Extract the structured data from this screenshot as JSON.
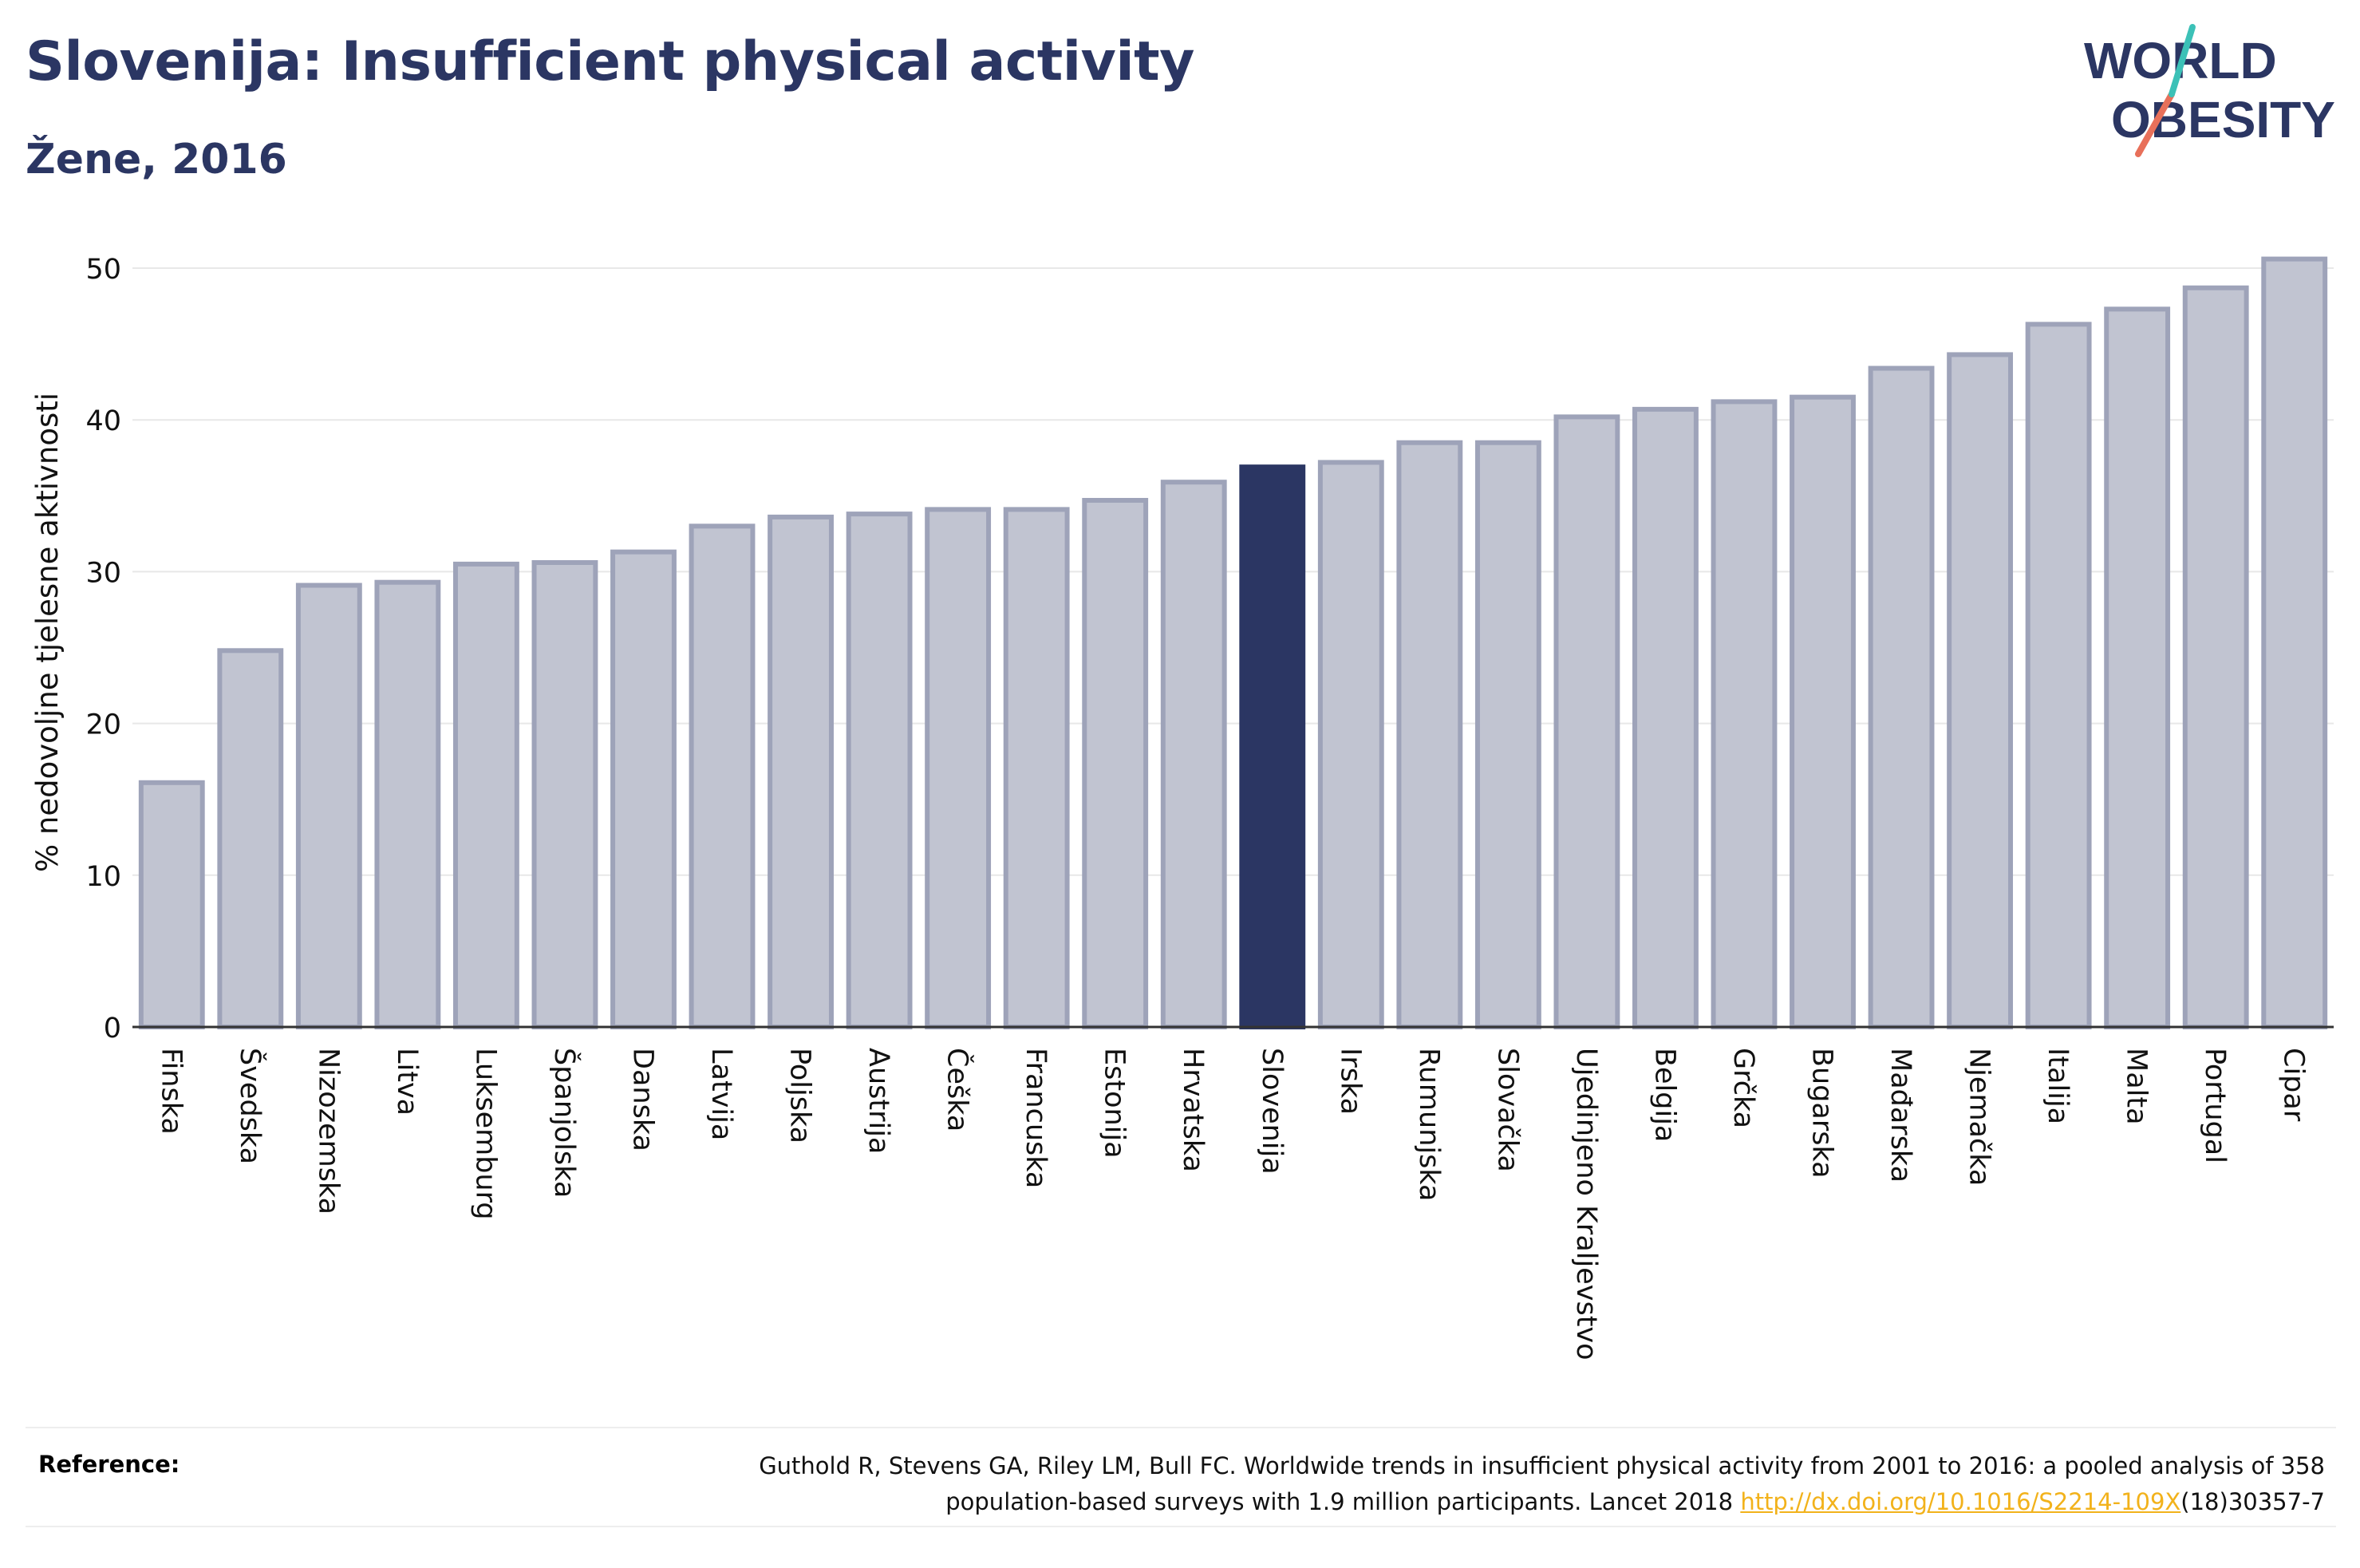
{
  "title": "Slovenija: Insufficient physical activity",
  "subtitle": "Žene, 2016",
  "logo": {
    "line1": "WORLD",
    "line2": "OBESITY"
  },
  "colors": {
    "bar": "#c1c4d1",
    "bar_stroke": "#9ea3b9",
    "highlight": "#2b3663",
    "title": "#2b3663",
    "link": "#f2b21b"
  },
  "chart_data": {
    "type": "bar",
    "ylabel": "% nedovoljne tjelesne aktivnosti",
    "xlabel": "",
    "ylim": [
      0,
      52
    ],
    "yticks": [
      0,
      10,
      20,
      30,
      40,
      50
    ],
    "grid": true,
    "highlight": "Slovenija",
    "categories": [
      "Finska",
      "Švedska",
      "Nizozemska",
      "Litva",
      "Luksemburg",
      "Španjolska",
      "Danska",
      "Latvija",
      "Poljska",
      "Austrija",
      "Češka",
      "Francuska",
      "Estonija",
      "Hrvatska",
      "Slovenija",
      "Irska",
      "Rumunjska",
      "Slovačka",
      "Ujedinjeno Kraljevstvo",
      "Belgija",
      "Grčka",
      "Bugarska",
      "Mađarska",
      "Njemačka",
      "Italija",
      "Malta",
      "Portugal",
      "Cipar"
    ],
    "values": [
      16.1,
      24.8,
      29.1,
      29.3,
      30.5,
      30.6,
      31.3,
      33.0,
      33.6,
      33.8,
      34.1,
      34.1,
      34.7,
      35.9,
      36.9,
      37.2,
      38.5,
      38.5,
      40.2,
      40.7,
      41.2,
      41.5,
      43.4,
      44.3,
      46.3,
      47.3,
      48.7,
      50.6
    ]
  },
  "reference": {
    "label": "Reference:",
    "text_line1": "Guthold R, Stevens GA, Riley LM, Bull FC. Worldwide trends in insufficient physical activity from 2001 to 2016: a pooled analysis of 358",
    "text_line2_before": "population-based surveys with 1.9 million participants. Lancet 2018 ",
    "link": "http://dx.doi.org/10.1016/S2214-109X",
    "text_line2_after": "(18)30357-7"
  }
}
